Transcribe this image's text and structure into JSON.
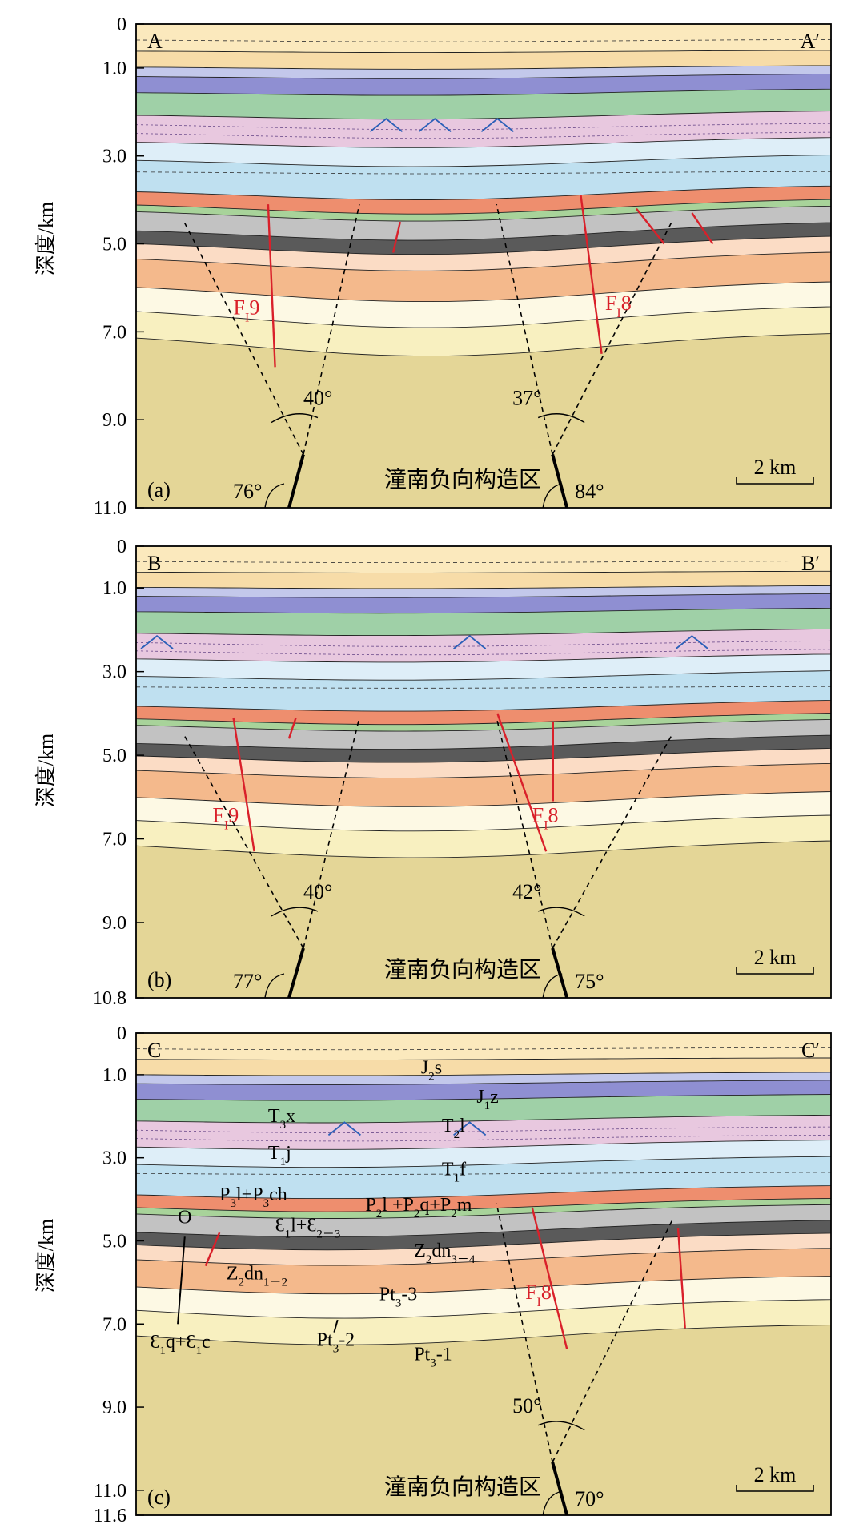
{
  "figure": {
    "depth_axis_label": "深度/km",
    "panels": [
      {
        "panel_label": "(a)",
        "section_start": "A",
        "section_end": "A′",
        "depth_max_km": 11.0,
        "depth_ticks": [
          "0",
          "1.0",
          "3.0",
          "5.0",
          "7.0",
          "9.0",
          "11.0"
        ],
        "depth_tick_values": [
          0,
          1.0,
          3.0,
          5.0,
          7.0,
          9.0,
          11.0
        ],
        "zone_label": "潼南负向构造区",
        "scale_label": "2 km",
        "fault_labels": [
          {
            "prefix": "F",
            "sub": "I",
            "num": "9"
          },
          {
            "prefix": "F",
            "sub": "I",
            "num": "8"
          }
        ],
        "angles": [
          "40°",
          "37°",
          "76°",
          "84°"
        ]
      },
      {
        "panel_label": "(b)",
        "section_start": "B",
        "section_end": "B′",
        "depth_max_km": 10.8,
        "depth_ticks": [
          "0",
          "1.0",
          "3.0",
          "5.0",
          "7.0",
          "9.0",
          "10.8"
        ],
        "depth_tick_values": [
          0,
          1.0,
          3.0,
          5.0,
          7.0,
          9.0,
          10.8
        ],
        "zone_label": "潼南负向构造区",
        "scale_label": "2 km",
        "fault_labels": [
          {
            "prefix": "F",
            "sub": "I",
            "num": "9"
          },
          {
            "prefix": "F",
            "sub": "I",
            "num": "8"
          }
        ],
        "angles": [
          "40°",
          "42°",
          "77°",
          "75°"
        ]
      },
      {
        "panel_label": "(c)",
        "section_start": "C",
        "section_end": "C′",
        "depth_max_km": 11.6,
        "depth_ticks": [
          "0",
          "1.0",
          "3.0",
          "5.0",
          "7.0",
          "9.0",
          "11.0",
          "11.6"
        ],
        "depth_tick_values": [
          0,
          1.0,
          3.0,
          5.0,
          7.0,
          9.0,
          11.0,
          11.6
        ],
        "zone_label": "潼南负向构造区",
        "scale_label": "2 km",
        "fault_labels": [
          {
            "prefix": "F",
            "sub": "I",
            "num": "8"
          }
        ],
        "angles": [
          "50°",
          "70°"
        ],
        "strata_labels": [
          {
            "parts": [
              [
                "J",
                ""
              ],
              [
                "2",
                "sub"
              ],
              [
                "s",
                ""
              ]
            ]
          },
          {
            "parts": [
              [
                "J",
                ""
              ],
              [
                "1",
                "sub"
              ],
              [
                "z",
                ""
              ]
            ]
          },
          {
            "parts": [
              [
                "T",
                ""
              ],
              [
                "3",
                "sub"
              ],
              [
                "x",
                ""
              ]
            ]
          },
          {
            "parts": [
              [
                "T",
                ""
              ],
              [
                "2",
                "sub"
              ],
              [
                "l",
                ""
              ]
            ]
          },
          {
            "parts": [
              [
                "T",
                ""
              ],
              [
                "1",
                "sub"
              ],
              [
                "j",
                ""
              ]
            ]
          },
          {
            "parts": [
              [
                "T",
                ""
              ],
              [
                "1",
                "sub"
              ],
              [
                "f",
                ""
              ]
            ]
          },
          {
            "parts": [
              [
                "P",
                ""
              ],
              [
                "3",
                "sub"
              ],
              [
                "l+P",
                ""
              ],
              [
                "3",
                "sub"
              ],
              [
                "ch",
                ""
              ]
            ]
          },
          {
            "parts": [
              [
                "P",
                ""
              ],
              [
                "2",
                "sub"
              ],
              [
                "l +P",
                ""
              ],
              [
                "2",
                "sub"
              ],
              [
                "q+P",
                ""
              ],
              [
                "2",
                "sub"
              ],
              [
                "m",
                ""
              ]
            ]
          },
          {
            "parts": [
              [
                "O",
                ""
              ]
            ]
          },
          {
            "parts": [
              [
                "Ɛ",
                ""
              ],
              [
                "1",
                "sub"
              ],
              [
                "l+Ɛ",
                ""
              ],
              [
                "2－3",
                "sub"
              ]
            ]
          },
          {
            "parts": [
              [
                "Z",
                ""
              ],
              [
                "2",
                "sub"
              ],
              [
                "dn",
                ""
              ],
              [
                "3－4",
                "sub"
              ]
            ]
          },
          {
            "parts": [
              [
                "Z",
                ""
              ],
              [
                "2",
                "sub"
              ],
              [
                "dn",
                ""
              ],
              [
                "1－2",
                "sub"
              ]
            ]
          },
          {
            "parts": [
              [
                "Pt",
                ""
              ],
              [
                "3",
                "sub"
              ],
              [
                "-3",
                ""
              ]
            ]
          },
          {
            "parts": [
              [
                "Ɛ",
                ""
              ],
              [
                "1",
                "sub"
              ],
              [
                "q+Ɛ",
                ""
              ],
              [
                "1",
                "sub"
              ],
              [
                "c",
                ""
              ]
            ]
          },
          {
            "parts": [
              [
                "Pt",
                ""
              ],
              [
                "3",
                "sub"
              ],
              [
                "-2",
                ""
              ]
            ]
          },
          {
            "parts": [
              [
                "Pt",
                ""
              ],
              [
                "3",
                "sub"
              ],
              [
                "-1",
                ""
              ]
            ]
          }
        ]
      }
    ]
  },
  "colors": {
    "J2s": "#fbe9bd",
    "J1z_purple": "#8f8fd2",
    "J1z_light": "#c3c8eb",
    "T3x": "#9fd0a7",
    "T2l": "#e8c8df",
    "T1j": "#deeef8",
    "T1f": "#bfe0f0",
    "P3": "#ee8e6e",
    "P2": "#a8d39a",
    "Camb": "#c2c2c2",
    "dark_band": "#5a5a5a",
    "Z2dn34": "#fbdcc5",
    "Z2dn12": "#f4b98c",
    "Pt3_3": "#fdf9e4",
    "Pt3_2": "#f8f0c0",
    "Pt3_1": "#e4d697",
    "fault_red": "#d9202a",
    "fold_blue": "#2a5fb8"
  }
}
